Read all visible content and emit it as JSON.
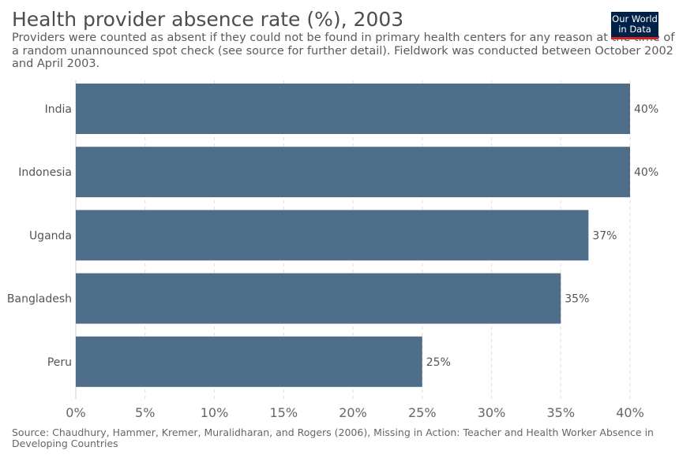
{
  "header": {
    "title": "Health provider absence rate (%), 2003",
    "subtitle": "Providers were counted as absent if they could not be found in primary health centers for any reason at the time of a random unannounced spot check (see source for further detail). Fieldwork was conducted between October 2002 and April 2003."
  },
  "logo": {
    "line1": "Our World",
    "line2": "in Data"
  },
  "footer": {
    "source": "Source: Chaudhury, Hammer, Kremer, Muralidharan, and Rogers (2006), Missing in Action: Teacher and Health Worker Absence in Developing Countries"
  },
  "colors": {
    "bar": "#4d6d89",
    "grid": "#dddddd",
    "axis": "#cccccc",
    "logo_bg": "#002147",
    "logo_accent": "#ce261e"
  },
  "chart_data": {
    "type": "bar",
    "orientation": "horizontal",
    "title": "Health provider absence rate (%), 2003",
    "categories": [
      "India",
      "Indonesia",
      "Uganda",
      "Bangladesh",
      "Peru"
    ],
    "values": [
      40,
      40,
      37,
      35,
      25
    ],
    "value_labels": [
      "40%",
      "40%",
      "37%",
      "35%",
      "25%"
    ],
    "xticks": [
      0,
      5,
      10,
      15,
      20,
      25,
      30,
      35,
      40
    ],
    "xtick_labels": [
      "0%",
      "5%",
      "10%",
      "15%",
      "20%",
      "25%",
      "30%",
      "35%",
      "40%"
    ],
    "xlim": [
      0,
      40
    ],
    "xlabel": "",
    "ylabel": "",
    "grid": "vertical dashed"
  }
}
